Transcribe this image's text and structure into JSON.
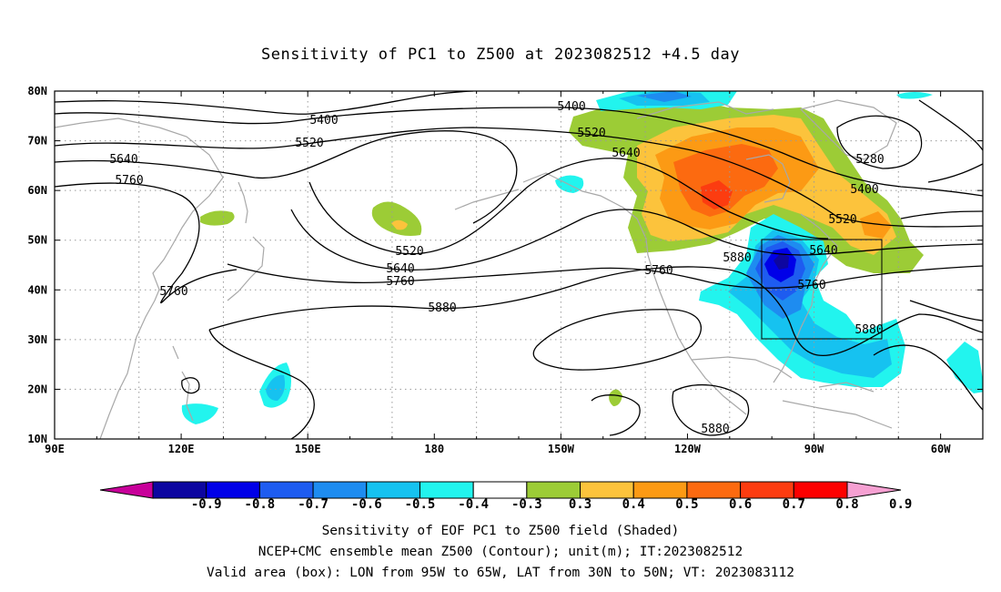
{
  "title": "Sensitivity of PC1 to Z500 at 2023082512 +4.5 day",
  "map": {
    "lon_range": [
      90,
      310
    ],
    "lat_range": [
      10,
      80
    ],
    "x_ticks": [
      "90E",
      "120E",
      "150E",
      "180",
      "150W",
      "120W",
      "90W",
      "60W"
    ],
    "y_ticks": [
      "80N",
      "70N",
      "60N",
      "50N",
      "40N",
      "30N",
      "20N",
      "10N"
    ],
    "grid": "dotted",
    "valid_box": {
      "lon": [
        "95W",
        "65W"
      ],
      "lat": [
        "30N",
        "50N"
      ]
    },
    "contour_labels": [
      "5400",
      "5520",
      "5640",
      "5760",
      "5760",
      "5520",
      "5640",
      "5760",
      "5880",
      "5400",
      "5520",
      "5640",
      "5760",
      "5880",
      "5280",
      "5400",
      "5520",
      "5640",
      "5760",
      "5880",
      "5880"
    ]
  },
  "colorbar": {
    "labels": [
      "-0.9",
      "-0.8",
      "-0.7",
      "-0.6",
      "-0.5",
      "-0.4",
      "-0.3",
      "0.3",
      "0.4",
      "0.5",
      "0.6",
      "0.7",
      "0.8",
      "0.9"
    ],
    "colors": [
      "#c8009a",
      "#0d06a0",
      "#0000e8",
      "#1e5cf0",
      "#1e8cf0",
      "#16c2f0",
      "#22f4ee",
      "#ffffff",
      "#9ccc36",
      "#fcc33c",
      "#fc9a14",
      "#fc6a10",
      "#fc3c10",
      "#fc0000",
      "#f6a0d2"
    ]
  },
  "footer": {
    "line1": "Sensitivity of EOF PC1 to Z500 field (Shaded)",
    "line2": "NCEP+CMC ensemble mean Z500 (Contour); unit(m); IT:2023082512",
    "line3": "Valid area (box): LON from 95W to 65W, LAT from 30N to 50N; VT: 2023083112"
  }
}
